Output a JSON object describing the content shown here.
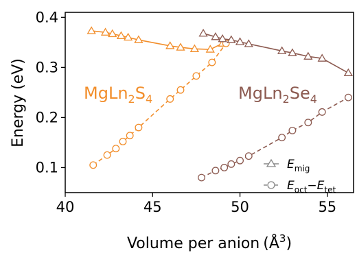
{
  "chart_data": {
    "type": "line",
    "xlabel": "Volume per anion",
    "xlabel_unit": "(Å",
    "xlabel_unit_sup": "3",
    "xlabel_unit_close": ")",
    "ylabel": "Energy (eV)",
    "xlim": [
      40,
      56.5
    ],
    "ylim": [
      0.05,
      0.41
    ],
    "xticks": [
      40,
      45,
      50,
      55
    ],
    "yticks": [
      0.1,
      0.2,
      0.3,
      0.4
    ],
    "xtick_labels": [
      "40",
      "45",
      "50",
      "55"
    ],
    "ytick_labels": [
      "0.1",
      "0.2",
      "0.3",
      "0.4"
    ],
    "grid": false,
    "legend_position": "lower-right",
    "legend": [
      {
        "marker": "triangle",
        "linestyle": "solid",
        "label_main": "E",
        "label_sub": "mig"
      },
      {
        "marker": "circle",
        "linestyle": "dashed",
        "label_main": "E",
        "label_sub": "oct",
        "label_mid": "−",
        "label_main2": "E",
        "label_sub2": "tet"
      }
    ],
    "annotations": [
      {
        "text_main": "MgLn",
        "sub1": "2",
        "text_mid": "S",
        "sub2": "4",
        "color": "#f28e2b"
      },
      {
        "text_main": "MgLn",
        "sub1": "2",
        "text_mid": "Se",
        "sub2": "4",
        "color": "#8c5a50"
      }
    ],
    "colors": {
      "sulfide": "#f28e2b",
      "selenide": "#8c5a50",
      "legend": "#888888"
    },
    "series": [
      {
        "group": "MgLn2S4",
        "quantity": "E_mig",
        "marker": "triangle",
        "linestyle": "solid",
        "x": [
          41.5,
          42.3,
          42.7,
          43.2,
          43.6,
          44.2,
          46.0,
          46.6,
          47.4,
          48.3,
          49.0
        ],
        "y": [
          0.373,
          0.37,
          0.367,
          0.363,
          0.36,
          0.355,
          0.343,
          0.34,
          0.337,
          0.336,
          0.348
        ]
      },
      {
        "group": "MgLn2S4",
        "quantity": "E_oct-E_tet",
        "marker": "circle",
        "linestyle": "dashed",
        "x": [
          41.6,
          42.4,
          42.9,
          43.3,
          43.7,
          44.2,
          46.0,
          46.6,
          47.5,
          48.4,
          49.2
        ],
        "y": [
          0.105,
          0.125,
          0.138,
          0.152,
          0.164,
          0.18,
          0.237,
          0.255,
          0.283,
          0.31,
          0.348
        ]
      },
      {
        "group": "MgLn2Se4",
        "quantity": "E_mig",
        "marker": "triangle",
        "linestyle": "solid",
        "x": [
          47.9,
          48.6,
          49.0,
          49.5,
          50.0,
          50.5,
          52.4,
          53.0,
          53.9,
          54.7,
          56.2
        ],
        "y": [
          0.368,
          0.361,
          0.357,
          0.355,
          0.351,
          0.347,
          0.333,
          0.329,
          0.322,
          0.318,
          0.289
        ]
      },
      {
        "group": "MgLn2Se4",
        "quantity": "E_oct-E_tet",
        "marker": "circle",
        "linestyle": "dashed",
        "x": [
          47.8,
          48.6,
          49.1,
          49.5,
          50.0,
          50.5,
          52.4,
          53.0,
          53.9,
          54.7,
          56.2
        ],
        "y": [
          0.08,
          0.094,
          0.1,
          0.107,
          0.114,
          0.123,
          0.16,
          0.174,
          0.19,
          0.211,
          0.24
        ]
      }
    ]
  }
}
